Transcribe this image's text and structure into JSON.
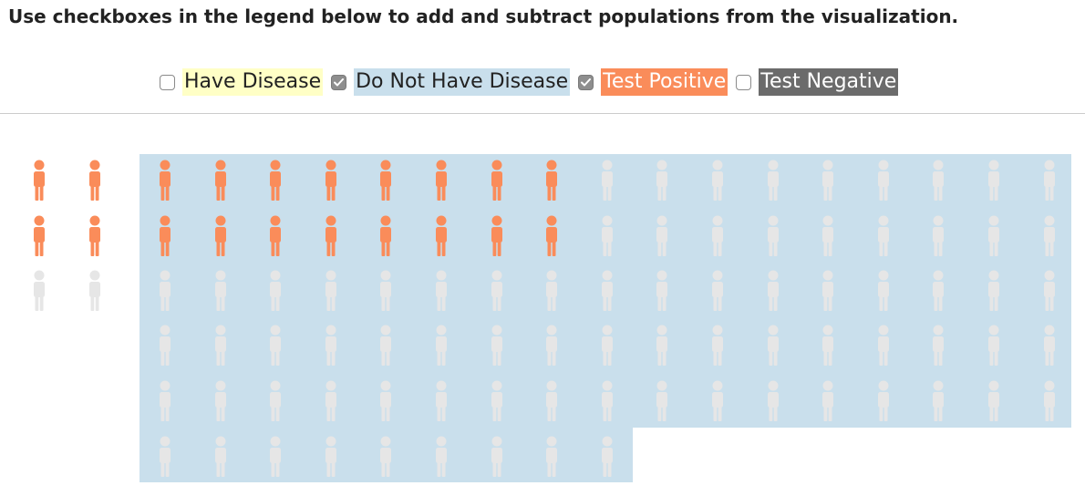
{
  "instructions": "Use checkboxes in the legend below to add and subtract populations from the visualization.",
  "legend": [
    {
      "label": "Have Disease",
      "checked": false,
      "style": "disease",
      "highlight": "#ffffc6"
    },
    {
      "label": "Do Not Have Disease",
      "checked": true,
      "style": "nodisease",
      "highlight": "#c9dfec"
    },
    {
      "label": "Test Positive",
      "checked": true,
      "style": "pos",
      "highlight": "#fa8c5a"
    },
    {
      "label": "Test Negative",
      "checked": false,
      "style": "neg",
      "highlight": "#6b6b6b"
    }
  ],
  "colors": {
    "positive_person": "#fa8c5a",
    "neutral_person": "#e6e6e6",
    "no_disease_region": "#c9dfec"
  },
  "population": {
    "have_disease": {
      "total": 6,
      "test_positive": 4
    },
    "no_disease": {
      "total": 94,
      "test_positive": 16
    }
  }
}
